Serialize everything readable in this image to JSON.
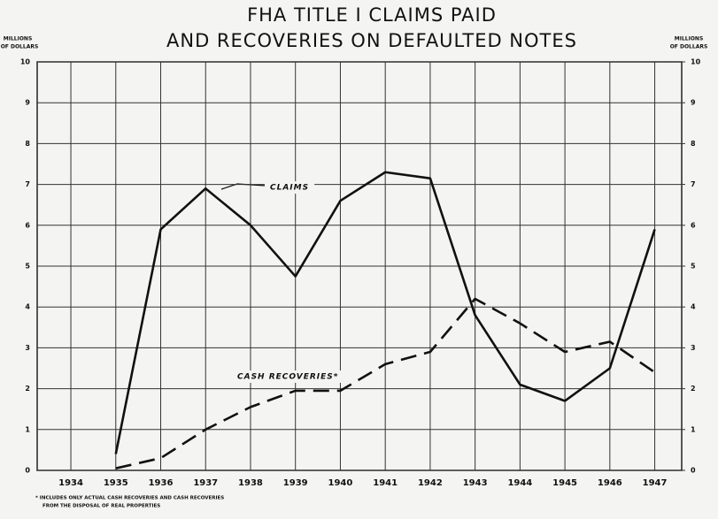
{
  "chart_data": {
    "type": "line",
    "title": [
      "FHA TITLE I CLAIMS PAID",
      "AND RECOVERIES ON DEFAULTED NOTES"
    ],
    "y_label": [
      "MILLIONS",
      "OF DOLLARS"
    ],
    "y2_label": [
      "MILLIONS",
      "OF DOLLARS"
    ],
    "x": [
      1935,
      1936,
      1937,
      1938,
      1939,
      1940,
      1941,
      1942,
      1943,
      1944,
      1945,
      1946,
      1947
    ],
    "xlim": [
      1933.25,
      1947.6
    ],
    "xticks": [
      1934,
      1935,
      1936,
      1937,
      1938,
      1939,
      1940,
      1941,
      1942,
      1943,
      1944,
      1945,
      1946,
      1947
    ],
    "ylim": [
      0,
      10
    ],
    "yticks": [
      0,
      1,
      2,
      3,
      4,
      5,
      6,
      7,
      8,
      9,
      10
    ],
    "y2lim": [
      0,
      10
    ],
    "y2ticks": [
      0,
      1,
      2,
      3,
      4,
      5,
      6,
      7,
      8,
      9,
      10
    ],
    "grid": true,
    "series": [
      {
        "name": "CLAIMS",
        "color": "#111111",
        "line_style": "solid",
        "values": [
          0.4,
          5.9,
          6.9,
          6.0,
          4.75,
          6.6,
          7.3,
          7.15,
          3.8,
          2.1,
          1.7,
          2.5,
          5.9
        ]
      },
      {
        "name": "CASH RECOVERIES*",
        "color": "#111111",
        "line_style": "dashed",
        "values": [
          0.05,
          0.3,
          1.0,
          1.55,
          1.95,
          1.95,
          2.6,
          2.9,
          4.2,
          3.6,
          2.9,
          3.15,
          2.4
        ]
      }
    ],
    "footnote": [
      "* INCLUDES ONLY ACTUAL CASH RECOVERIES AND CASH RECOVERIES",
      "FROM THE DISPOSAL OF REAL PROPERTIES"
    ]
  }
}
